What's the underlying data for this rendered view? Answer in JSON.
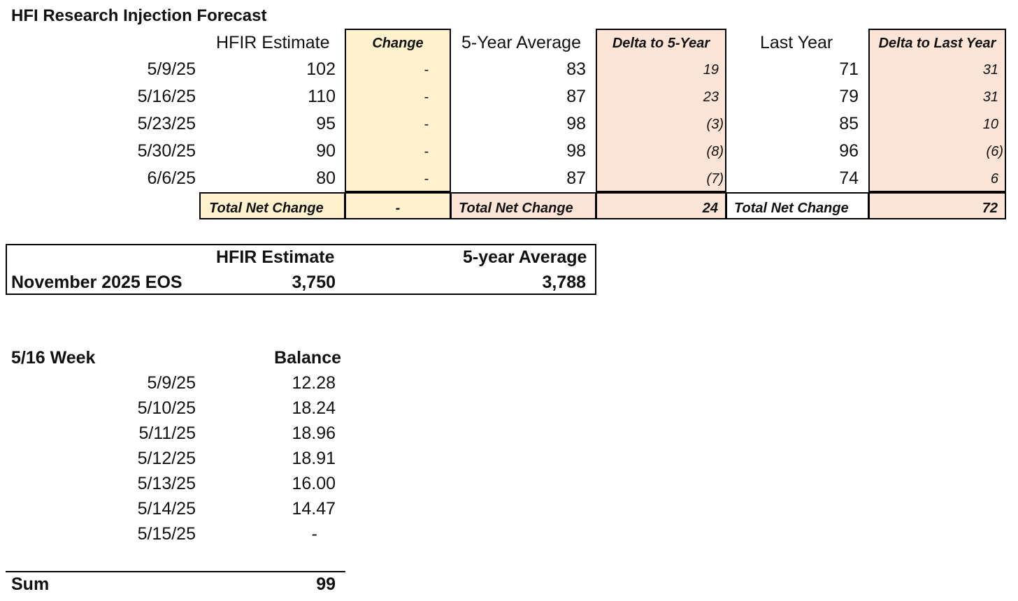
{
  "title": "HFI Research Injection Forecast",
  "forecast": {
    "headers": {
      "hfir": "HFIR Estimate",
      "change": "Change",
      "five_year": "5-Year Average",
      "delta5": "Delta to 5-Year",
      "last_year": "Last Year",
      "delta_ly": "Delta to Last Year"
    },
    "rows": [
      {
        "date": "5/9/25",
        "hfir": "102",
        "change": "-",
        "five_year": "83",
        "delta5": "19",
        "last_year": "71",
        "delta_ly": "31"
      },
      {
        "date": "5/16/25",
        "hfir": "110",
        "change": "-",
        "five_year": "87",
        "delta5": "23",
        "last_year": "79",
        "delta_ly": "31"
      },
      {
        "date": "5/23/25",
        "hfir": "95",
        "change": "-",
        "five_year": "98",
        "delta5": "(3)",
        "last_year": "85",
        "delta_ly": "10"
      },
      {
        "date": "5/30/25",
        "hfir": "90",
        "change": "-",
        "five_year": "98",
        "delta5": "(8)",
        "last_year": "96",
        "delta_ly": "(6)"
      },
      {
        "date": "6/6/25",
        "hfir": "80",
        "change": "-",
        "five_year": "87",
        "delta5": "(7)",
        "last_year": "74",
        "delta_ly": "6"
      }
    ],
    "totals": {
      "label": "Total Net Change",
      "change": "-",
      "delta5": "24",
      "delta_ly": "72"
    }
  },
  "eos": {
    "hfir_label": "HFIR Estimate",
    "avg_label": "5-year Average",
    "row_label": "November 2025 EOS",
    "hfir_value": "3,750",
    "avg_value": "3,788"
  },
  "balance": {
    "week_label": "5/16 Week",
    "col_label": "Balance",
    "rows": [
      {
        "date": "5/9/25",
        "value": "12.28"
      },
      {
        "date": "5/10/25",
        "value": "18.24"
      },
      {
        "date": "5/11/25",
        "value": "18.96"
      },
      {
        "date": "5/12/25",
        "value": "18.91"
      },
      {
        "date": "5/13/25",
        "value": "16.00"
      },
      {
        "date": "5/14/25",
        "value": "14.47"
      },
      {
        "date": "5/15/25",
        "value": "-"
      }
    ],
    "sum_label": "Sum",
    "sum_value": "99"
  },
  "colors": {
    "yellow_fill": "#fff2cc",
    "pink_fill": "#fce4d6"
  }
}
